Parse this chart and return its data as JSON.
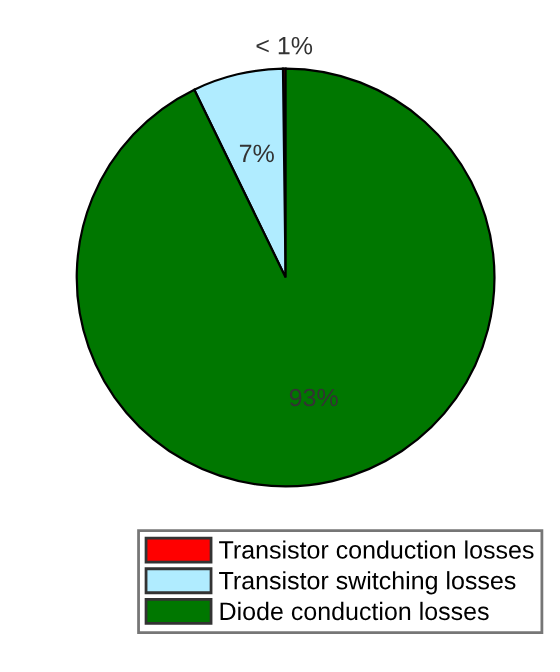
{
  "chart_data": {
    "type": "pie",
    "categories": [
      "Transistor conduction losses",
      "Transistor switching losses",
      "Diode conduction losses"
    ],
    "values": [
      0.2,
      7,
      92.8
    ],
    "colors": [
      "#ff0000",
      "#b0ecff",
      "#007700"
    ],
    "value_labels": [
      "< 1%",
      "7%",
      "93%"
    ],
    "legend": "bottom right"
  }
}
